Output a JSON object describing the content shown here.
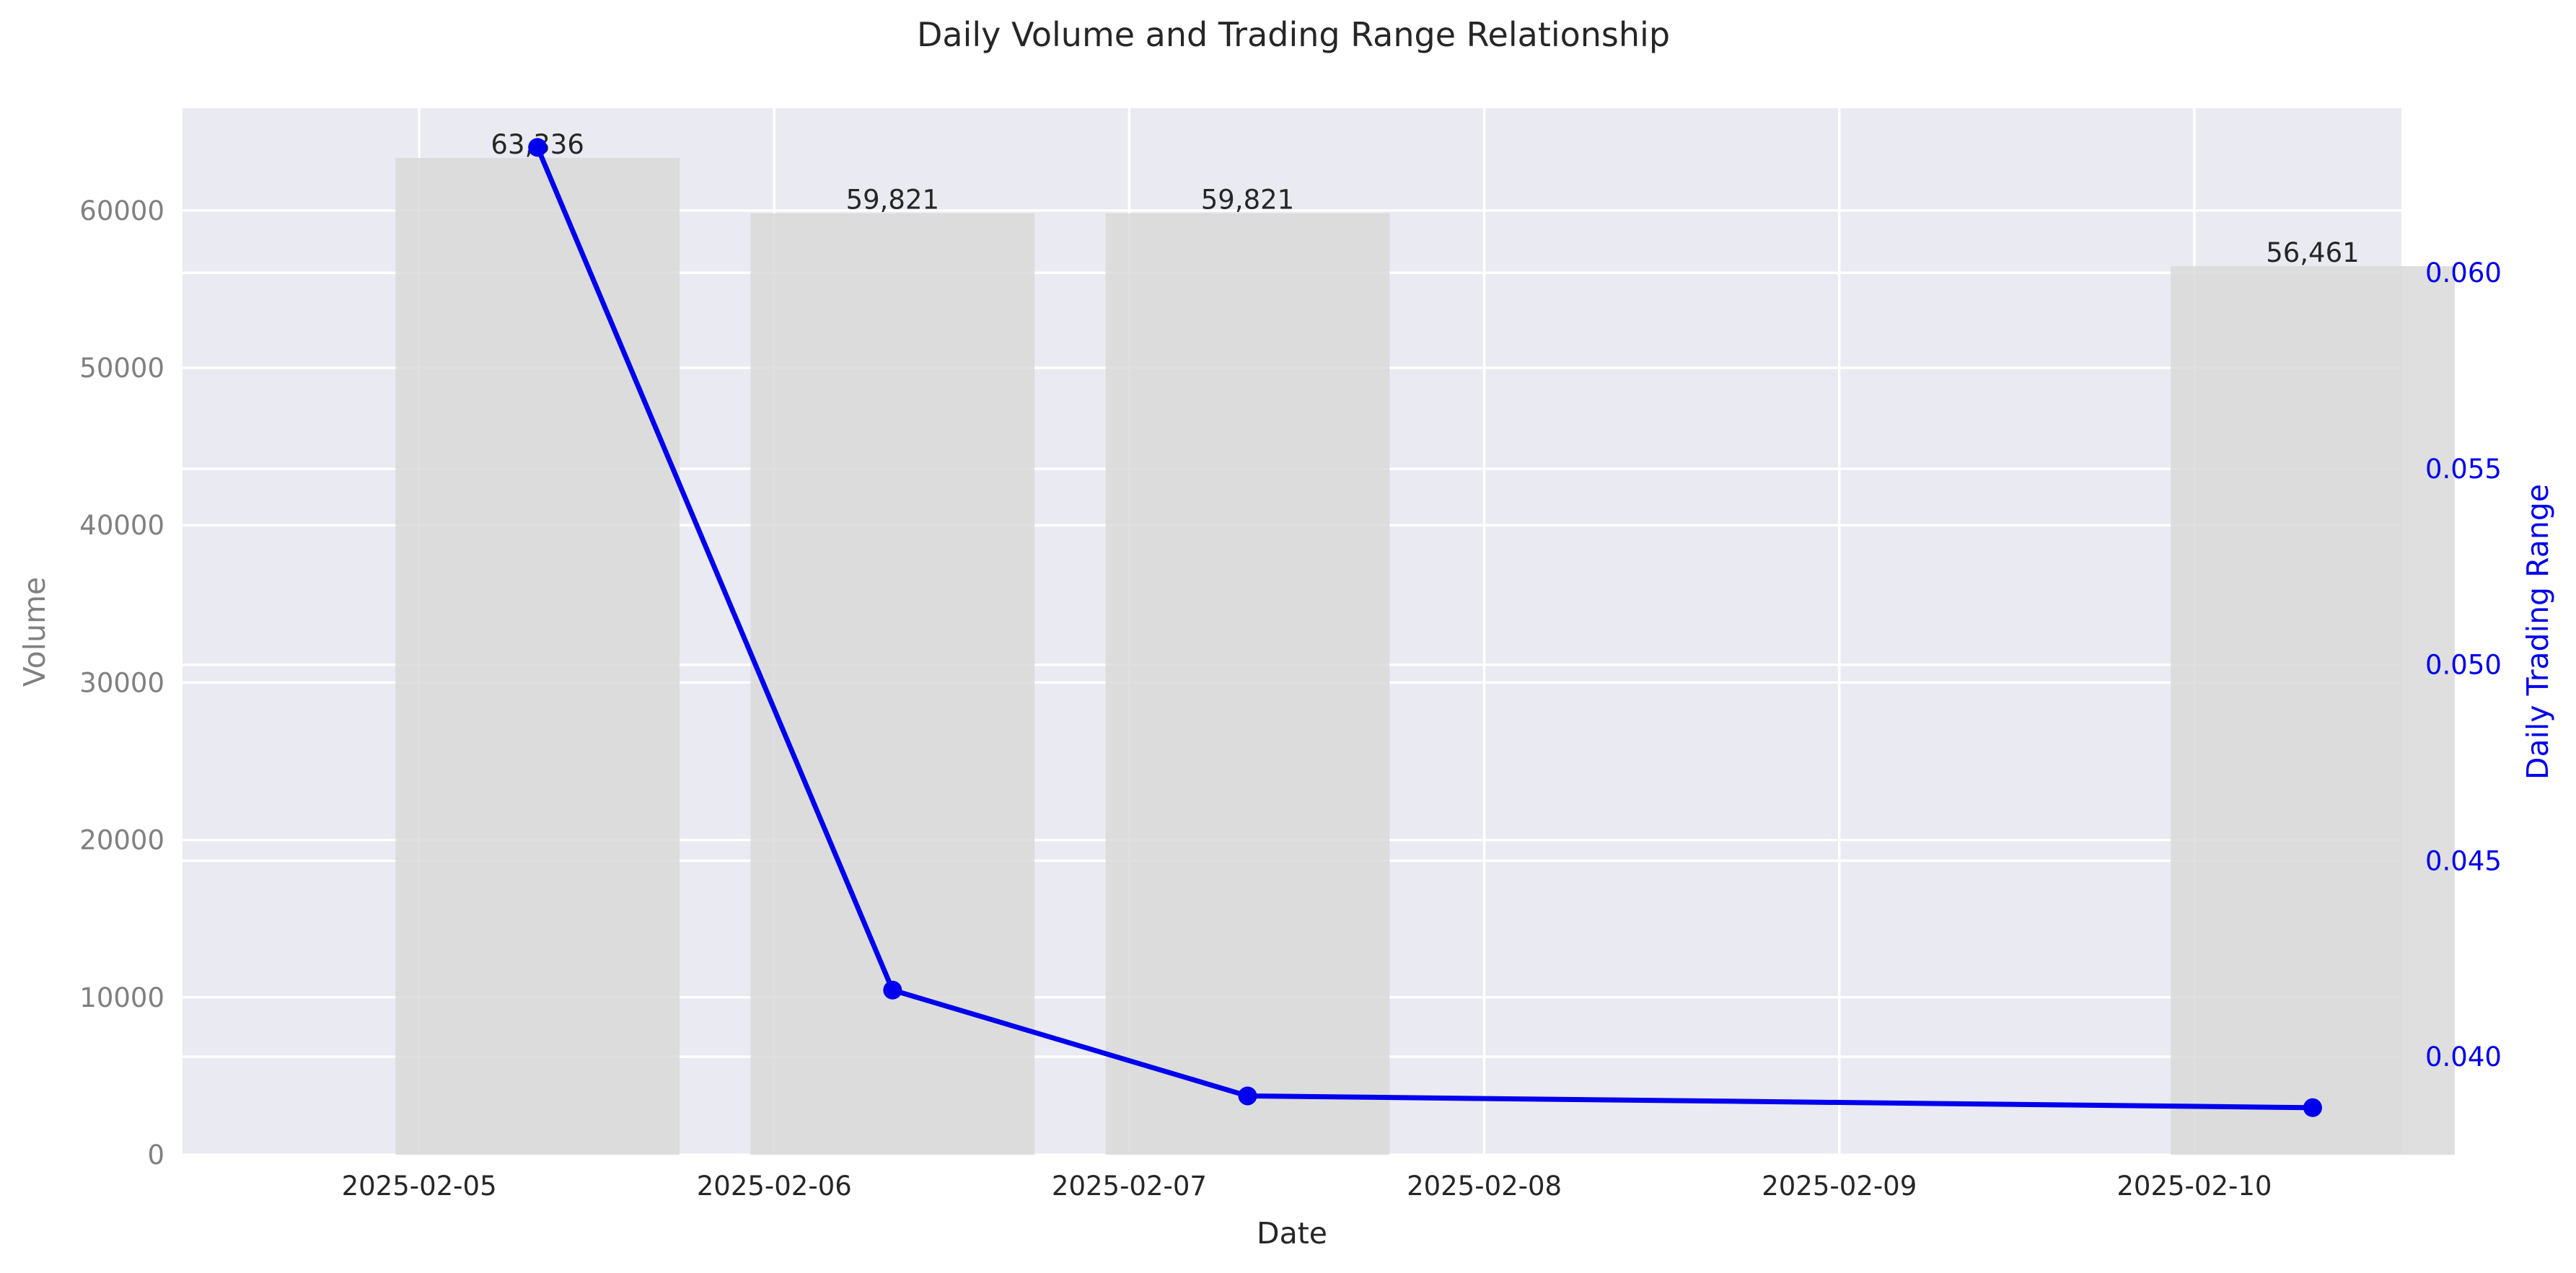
{
  "chart_data": {
    "type": "bar",
    "title": "Daily Volume and Trading Range Relationship",
    "xlabel": "Date",
    "ylabel": "Volume",
    "y2label": "Daily Trading Range",
    "x_ticks": [
      "2025-02-05",
      "2025-02-06",
      "2025-02-07",
      "2025-02-08",
      "2025-02-09",
      "2025-02-10"
    ],
    "y_ticks": [
      "0",
      "10000",
      "20000",
      "30000",
      "40000",
      "50000",
      "60000"
    ],
    "y_tick_values": [
      0,
      10000,
      20000,
      30000,
      40000,
      50000,
      60000
    ],
    "y2_ticks": [
      "0.040",
      "0.045",
      "0.050",
      "0.055",
      "0.060"
    ],
    "y2_tick_values": [
      0.04,
      0.045,
      0.05,
      0.055,
      0.06
    ],
    "ylim": [
      0,
      66500
    ],
    "y2lim": [
      0.0375,
      0.0642
    ],
    "xlim": [
      "2025-02-04T08:00",
      "2025-02-10T14:00"
    ],
    "grid": true,
    "series": [
      {
        "kind": "bar",
        "x": [
          "2025-02-05T08:00",
          "2025-02-06T08:00",
          "2025-02-07T08:00",
          "2025-02-10T08:00"
        ],
        "values": [
          63336,
          59821,
          59821,
          56461
        ],
        "labels": [
          "63,336",
          "59,821",
          "59,821",
          "56,461"
        ],
        "color": "#d9d9d9"
      },
      {
        "kind": "line",
        "axis": "right",
        "x": [
          "2025-02-05T08:00",
          "2025-02-06T08:00",
          "2025-02-07T08:00",
          "2025-02-10T08:00"
        ],
        "values": [
          0.0632,
          0.0417,
          0.039,
          0.0387
        ],
        "color": "#0000ee"
      }
    ],
    "colors": {
      "plot_background": "#eaeaf2",
      "grid": "#ffffff",
      "left_axis_text": "#808080",
      "right_axis_text": "#0000ee",
      "text": "#262626"
    }
  }
}
